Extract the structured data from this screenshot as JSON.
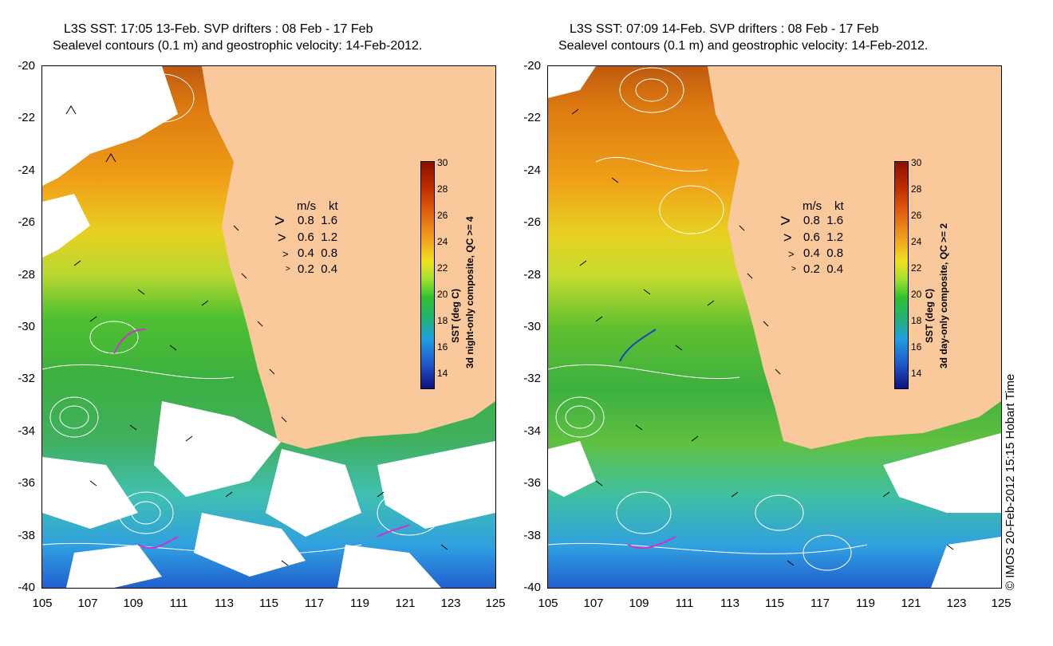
{
  "panels": [
    {
      "title_line1": "L3S SST: 17:05 13-Feb. SVP drifters : 08 Feb - 17 Feb",
      "title_line2": "Sealevel contours (0.1 m) and geostrophic velocity: 14-Feb-2012.",
      "colorbar_title_line1": "SST (deg C)",
      "colorbar_title_line2": "3d night-only composite, QC >= 4"
    },
    {
      "title_line1": "L3S SST: 07:09 14-Feb. SVP drifters : 08 Feb - 17 Feb",
      "title_line2": "Sealevel contours (0.1 m) and geostrophic velocity: 14-Feb-2012.",
      "colorbar_title_line1": "SST (deg C)",
      "colorbar_title_line2": "3d day-only composite, QC >= 2"
    }
  ],
  "axes": {
    "y_ticks": [
      "-20",
      "-22",
      "-24",
      "-26",
      "-28",
      "-30",
      "-32",
      "-34",
      "-36",
      "-38",
      "-40"
    ],
    "x_ticks": [
      "105",
      "107",
      "109",
      "111",
      "113",
      "115",
      "117",
      "119",
      "121",
      "123",
      "125"
    ],
    "lat_range": [
      -40,
      -20
    ],
    "lon_range": [
      105,
      125
    ]
  },
  "colorbar": {
    "ticks": [
      "30",
      "28",
      "26",
      "24",
      "22",
      "20",
      "18",
      "16",
      "14"
    ],
    "range": [
      13,
      30
    ],
    "unit": "deg C"
  },
  "velocity_legend": {
    "head_ms": "m/s",
    "head_kt": "kt",
    "rows": [
      {
        "ms": "0.8",
        "kt": "1.6"
      },
      {
        "ms": "0.6",
        "kt": "1.2"
      },
      {
        "ms": "0.4",
        "kt": "0.8"
      },
      {
        "ms": "0.2",
        "kt": "0.4"
      }
    ]
  },
  "colors": {
    "land": "#f9c89b",
    "contour": "#ffffff",
    "drifter": "#cc33cc"
  },
  "copyright": "© IMOS 20-Feb-2012 15:15 Hobart Time"
}
